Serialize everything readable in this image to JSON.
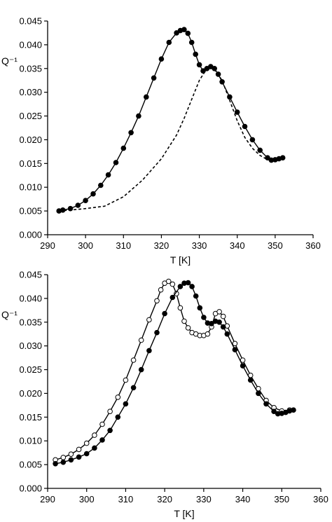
{
  "chart_data": [
    {
      "type": "line",
      "xlabel": "T [K]",
      "ylabel": "Q⁻¹",
      "xlim": [
        290,
        360
      ],
      "ylim": [
        0.0,
        0.045
      ],
      "x_ticks": [
        "290",
        "300",
        "310",
        "320",
        "330",
        "340",
        "350",
        "360"
      ],
      "y_ticks": [
        "0.000",
        "0.005",
        "0.010",
        "0.015",
        "0.020",
        "0.025",
        "0.030",
        "0.035",
        "0.040",
        "0.045"
      ],
      "grid": false,
      "series": [
        {
          "style": "solid line with filled circles",
          "x": [
            293,
            294,
            296,
            298,
            300,
            302,
            304,
            306,
            308,
            310,
            312,
            314,
            316,
            318,
            320,
            322,
            324,
            325,
            326,
            327,
            328,
            329,
            330,
            331,
            332,
            333,
            334,
            335,
            336,
            338,
            340,
            342,
            344,
            346,
            348,
            349,
            350,
            351,
            352
          ],
          "y": [
            0.005,
            0.0052,
            0.0055,
            0.0062,
            0.0072,
            0.0086,
            0.0104,
            0.0126,
            0.0152,
            0.0182,
            0.0215,
            0.025,
            0.029,
            0.033,
            0.037,
            0.0405,
            0.0425,
            0.043,
            0.0432,
            0.0424,
            0.0405,
            0.038,
            0.0358,
            0.0345,
            0.035,
            0.0354,
            0.035,
            0.0338,
            0.0322,
            0.029,
            0.0258,
            0.0228,
            0.02,
            0.0178,
            0.0162,
            0.0157,
            0.0158,
            0.016,
            0.0162
          ]
        },
        {
          "style": "dashed line",
          "x": [
            293,
            296,
            300,
            305,
            310,
            315,
            320,
            324,
            326,
            328,
            330,
            332,
            333,
            334,
            336,
            338,
            340,
            342,
            344,
            346,
            348,
            350,
            352
          ],
          "y": [
            0.005,
            0.0052,
            0.0055,
            0.006,
            0.008,
            0.0115,
            0.016,
            0.021,
            0.0245,
            0.0285,
            0.0325,
            0.035,
            0.0353,
            0.0348,
            0.0325,
            0.0283,
            0.024,
            0.0205,
            0.0182,
            0.0167,
            0.0158,
            0.0158,
            0.0162
          ]
        }
      ]
    },
    {
      "type": "line",
      "xlabel": "T [K]",
      "ylabel": "Q⁻¹",
      "xlim": [
        290,
        360
      ],
      "ylim": [
        0.0,
        0.045
      ],
      "x_ticks": [
        "290",
        "300",
        "310",
        "320",
        "330",
        "340",
        "350",
        "360"
      ],
      "y_ticks": [
        "0.000",
        "0.005",
        "0.010",
        "0.015",
        "0.020",
        "0.025",
        "0.030",
        "0.035",
        "0.040",
        "0.045"
      ],
      "grid": false,
      "series": [
        {
          "style": "solid line with open circles",
          "x": [
            292,
            294,
            296,
            298,
            300,
            302,
            304,
            306,
            308,
            310,
            312,
            314,
            316,
            318,
            319,
            320,
            321,
            322,
            323,
            324,
            325,
            326,
            327,
            328,
            329,
            330,
            331,
            332,
            333,
            334,
            335,
            336,
            338,
            340,
            342,
            344,
            346,
            348,
            350,
            352
          ],
          "y": [
            0.006,
            0.0065,
            0.0072,
            0.0082,
            0.0095,
            0.0112,
            0.0135,
            0.0162,
            0.0192,
            0.0228,
            0.027,
            0.0312,
            0.0355,
            0.0395,
            0.0418,
            0.0432,
            0.0436,
            0.043,
            0.041,
            0.038,
            0.0352,
            0.0338,
            0.0328,
            0.0325,
            0.0322,
            0.0322,
            0.0325,
            0.034,
            0.0368,
            0.0372,
            0.0362,
            0.0342,
            0.0305,
            0.027,
            0.0238,
            0.021,
            0.0185,
            0.017,
            0.0163,
            0.0165
          ]
        },
        {
          "style": "solid line with filled circles",
          "x": [
            292,
            294,
            296,
            298,
            300,
            302,
            304,
            306,
            308,
            310,
            312,
            314,
            316,
            318,
            320,
            322,
            324,
            325,
            326,
            327,
            328,
            329,
            330,
            331,
            332,
            333,
            334,
            335,
            336,
            338,
            340,
            342,
            344,
            346,
            348,
            349,
            350,
            351,
            352,
            353
          ],
          "y": [
            0.0052,
            0.0055,
            0.006,
            0.0066,
            0.0073,
            0.0085,
            0.0102,
            0.0122,
            0.015,
            0.0178,
            0.0212,
            0.025,
            0.029,
            0.0328,
            0.0368,
            0.0402,
            0.0425,
            0.0432,
            0.0433,
            0.0425,
            0.0405,
            0.038,
            0.036,
            0.0348,
            0.0347,
            0.0352,
            0.035,
            0.034,
            0.0325,
            0.0292,
            0.0258,
            0.0228,
            0.02,
            0.0178,
            0.0162,
            0.0157,
            0.0158,
            0.016,
            0.0163,
            0.0165
          ]
        }
      ]
    }
  ]
}
